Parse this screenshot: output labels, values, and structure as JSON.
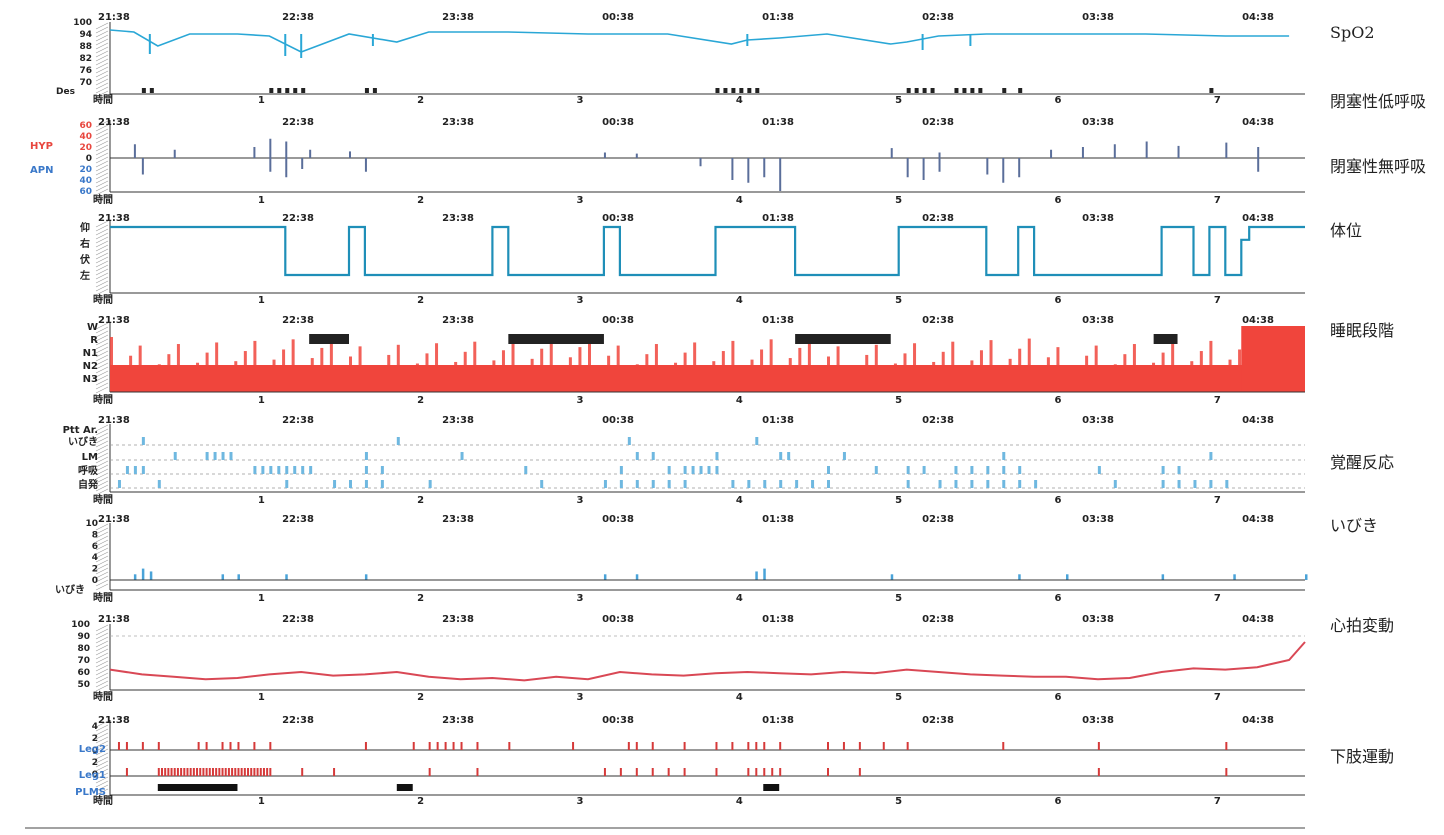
{
  "time_labels": [
    "21:38",
    "22:38",
    "23:38",
    "00:38",
    "01:38",
    "02:38",
    "03:38",
    "04:38"
  ],
  "hour_labels": [
    "時間",
    "1",
    "2",
    "3",
    "4",
    "5",
    "6",
    "7"
  ],
  "right_labels": {
    "spo2": "SpO2",
    "hypopnea": "閉塞性低呼吸",
    "apnea": "閉塞性無呼吸",
    "position": "体位",
    "sleep": "睡眠段階",
    "arousal": "覚醒反応",
    "snore": "いびき",
    "hr": "心拍変動",
    "leg": "下肢運動"
  },
  "colors": {
    "spo2": "#2aa7d6",
    "hyp": "#e8473f",
    "apn": "#3a78c9",
    "bars": "#5a6e9a",
    "position": "#1f8fb8",
    "sleep": "#f0453c",
    "rem": "#222222",
    "arousal": "#6fb8e0",
    "snore": "#4aa3d8",
    "hr": "#d94855",
    "leg": "#d63a3a",
    "plms": "#111111",
    "axis": "#333333"
  },
  "chart_data": [
    {
      "type": "line",
      "panel": "spo2",
      "y_ticks": [
        100,
        94,
        88,
        82,
        76,
        70
      ],
      "ylim": [
        70,
        100
      ],
      "extra_row_label": "Des",
      "x_hours": [
        0,
        0.15,
        0.3,
        0.5,
        0.8,
        1.0,
        1.2,
        1.5,
        1.8,
        2.0,
        2.5,
        3.0,
        3.5,
        3.9,
        4.0,
        4.2,
        4.5,
        4.9,
        5.0,
        5.2,
        5.5,
        6.0,
        6.5,
        7.0,
        7.4
      ],
      "values": [
        96,
        95,
        88,
        94,
        94,
        93,
        85,
        94,
        90,
        95,
        95,
        94,
        94,
        89,
        91,
        92,
        94,
        89,
        90,
        93,
        94,
        94,
        94,
        93,
        93
      ],
      "desat_hours": [
        0.2,
        0.25,
        1.0,
        1.05,
        1.1,
        1.15,
        1.2,
        1.6,
        1.65,
        3.8,
        3.85,
        3.9,
        3.95,
        4.0,
        4.05,
        5.0,
        5.05,
        5.1,
        5.15,
        5.3,
        5.35,
        5.4,
        5.45,
        5.6,
        5.7,
        6.9
      ]
    },
    {
      "type": "bar",
      "panel": "apnea_hypopnea",
      "y_ticks_top": [
        "60",
        "40",
        "20"
      ],
      "y_ticks_bottom": [
        "20",
        "40",
        "60"
      ],
      "label_top": "HYP",
      "label_bottom": "APN",
      "zero_label": "0",
      "hyp_bars": [
        [
          0.15,
          25
        ],
        [
          0.4,
          15
        ],
        [
          0.9,
          20
        ],
        [
          1.0,
          35
        ],
        [
          1.1,
          30
        ],
        [
          1.25,
          15
        ],
        [
          1.5,
          12
        ],
        [
          3.1,
          10
        ],
        [
          3.3,
          8
        ],
        [
          5.9,
          15
        ],
        [
          6.1,
          20
        ],
        [
          6.3,
          25
        ],
        [
          6.5,
          30
        ],
        [
          6.7,
          22
        ],
        [
          7.0,
          28
        ],
        [
          7.2,
          20
        ],
        [
          4.9,
          18
        ],
        [
          5.2,
          10
        ]
      ],
      "apn_bars": [
        [
          0.2,
          30
        ],
        [
          1.0,
          25
        ],
        [
          1.1,
          35
        ],
        [
          1.2,
          20
        ],
        [
          1.6,
          25
        ],
        [
          3.7,
          15
        ],
        [
          3.9,
          40
        ],
        [
          4.0,
          45
        ],
        [
          4.1,
          35
        ],
        [
          4.2,
          60
        ],
        [
          5.0,
          35
        ],
        [
          5.1,
          40
        ],
        [
          5.2,
          25
        ],
        [
          5.5,
          30
        ],
        [
          5.6,
          45
        ],
        [
          5.7,
          35
        ],
        [
          7.2,
          25
        ]
      ]
    },
    {
      "type": "line",
      "panel": "position",
      "y_ticks": [
        "仰",
        "右",
        "伏",
        "左"
      ],
      "segments": [
        [
          0,
          0
        ],
        [
          1.1,
          0
        ],
        [
          1.1,
          3
        ],
        [
          1.5,
          3
        ],
        [
          1.5,
          0
        ],
        [
          1.6,
          0
        ],
        [
          1.6,
          3
        ],
        [
          2.4,
          3
        ],
        [
          2.4,
          0
        ],
        [
          2.5,
          0
        ],
        [
          2.5,
          3
        ],
        [
          3.1,
          3
        ],
        [
          3.1,
          0
        ],
        [
          3.2,
          0
        ],
        [
          3.2,
          3
        ],
        [
          3.8,
          3
        ],
        [
          3.8,
          0
        ],
        [
          4.3,
          0
        ],
        [
          4.3,
          3
        ],
        [
          4.95,
          3
        ],
        [
          4.95,
          0
        ],
        [
          5.5,
          0
        ],
        [
          5.5,
          3
        ],
        [
          5.7,
          3
        ],
        [
          5.7,
          0
        ],
        [
          5.8,
          0
        ],
        [
          5.8,
          3
        ],
        [
          6.6,
          3
        ],
        [
          6.6,
          0
        ],
        [
          6.8,
          0
        ],
        [
          6.8,
          3
        ],
        [
          6.9,
          3
        ],
        [
          6.9,
          0
        ],
        [
          7.0,
          0
        ],
        [
          7.0,
          3
        ],
        [
          7.1,
          3
        ],
        [
          7.1,
          0.8
        ],
        [
          7.15,
          0.8
        ],
        [
          7.15,
          0
        ],
        [
          7.5,
          0
        ]
      ]
    },
    {
      "type": "area",
      "panel": "sleep",
      "y_ticks": [
        "W",
        "R",
        "N1",
        "N2",
        "N3"
      ],
      "rem_blocks": [
        [
          1.25,
          1.5
        ],
        [
          2.5,
          3.1
        ],
        [
          4.3,
          4.9
        ],
        [
          6.55,
          6.7
        ]
      ],
      "wake_block": [
        7.1,
        7.5
      ]
    },
    {
      "type": "table",
      "panel": "arousal",
      "rows": [
        "Ptt Ar.",
        "いびき",
        "LM",
        "呼吸",
        "自発"
      ],
      "events": {
        "snore": [
          0.2,
          1.8,
          3.25,
          4.05
        ],
        "lm": [
          0.4,
          0.6,
          0.65,
          0.7,
          0.75,
          1.6,
          2.2,
          3.3,
          3.4,
          3.8,
          4.2,
          4.25,
          4.6,
          5.6,
          6.9
        ],
        "resp": [
          0.1,
          0.15,
          0.2,
          0.9,
          0.95,
          1.0,
          1.05,
          1.1,
          1.15,
          1.2,
          1.25,
          1.6,
          1.7,
          2.6,
          3.2,
          3.5,
          3.6,
          3.65,
          3.7,
          3.75,
          3.8,
          4.5,
          4.8,
          5.0,
          5.1,
          5.3,
          5.4,
          5.5,
          5.6,
          5.7,
          6.2,
          6.6,
          6.7
        ],
        "spont": [
          0.05,
          0.3,
          1.1,
          1.4,
          1.5,
          1.6,
          1.7,
          2.0,
          2.7,
          3.1,
          3.2,
          3.3,
          3.4,
          3.5,
          3.6,
          3.9,
          4.0,
          4.1,
          4.2,
          4.3,
          4.4,
          4.5,
          5.0,
          5.2,
          5.3,
          5.4,
          5.5,
          5.6,
          5.7,
          5.8,
          6.3,
          6.6,
          6.7,
          6.8,
          6.9,
          7.0
        ]
      }
    },
    {
      "type": "bar",
      "panel": "snore",
      "y_ticks": [
        10,
        8,
        6,
        4,
        2,
        0
      ],
      "bottom_label": "いびき",
      "bars": [
        [
          0.15,
          1
        ],
        [
          0.2,
          2
        ],
        [
          0.25,
          1.5
        ],
        [
          0.7,
          1
        ],
        [
          0.8,
          1
        ],
        [
          1.1,
          1
        ],
        [
          1.6,
          1
        ],
        [
          3.1,
          1
        ],
        [
          3.3,
          1
        ],
        [
          4.05,
          1.5
        ],
        [
          4.1,
          2
        ],
        [
          4.9,
          1
        ],
        [
          5.7,
          1
        ],
        [
          6.0,
          1
        ],
        [
          6.6,
          1
        ],
        [
          7.05,
          1
        ],
        [
          7.5,
          1
        ]
      ]
    },
    {
      "type": "line",
      "panel": "hr",
      "y_ticks": [
        100,
        90,
        80,
        70,
        60,
        50
      ],
      "ylim": [
        45,
        100
      ],
      "x_hours": [
        0,
        0.2,
        0.4,
        0.6,
        0.8,
        1.0,
        1.2,
        1.4,
        1.6,
        1.8,
        2.0,
        2.2,
        2.4,
        2.6,
        2.8,
        3.0,
        3.2,
        3.4,
        3.6,
        3.8,
        4.0,
        4.2,
        4.4,
        4.6,
        4.8,
        5.0,
        5.2,
        5.4,
        5.6,
        5.8,
        6.0,
        6.2,
        6.4,
        6.6,
        6.8,
        7.0,
        7.2,
        7.4,
        7.5
      ],
      "values": [
        62,
        58,
        56,
        54,
        55,
        58,
        60,
        57,
        58,
        60,
        56,
        54,
        55,
        53,
        56,
        54,
        60,
        58,
        57,
        59,
        60,
        59,
        58,
        60,
        59,
        62,
        60,
        58,
        57,
        56,
        56,
        54,
        55,
        60,
        63,
        62,
        64,
        70,
        85
      ]
    },
    {
      "type": "bar",
      "panel": "leg",
      "leg2_label": "Leg2",
      "leg1_label": "Leg1",
      "plms_label": "PLMS",
      "y_ticks_leg2": [
        4,
        2,
        0
      ],
      "y_ticks_leg1": [
        2,
        0
      ],
      "leg2": [
        0.05,
        0.1,
        0.2,
        0.3,
        0.55,
        0.6,
        0.7,
        0.75,
        0.8,
        0.9,
        1.0,
        1.6,
        1.9,
        2.0,
        2.05,
        2.1,
        2.15,
        2.2,
        2.3,
        2.5,
        2.9,
        3.25,
        3.3,
        3.4,
        3.6,
        3.8,
        3.9,
        4.0,
        4.05,
        4.1,
        4.2,
        4.5,
        4.6,
        4.7,
        4.85,
        5.0,
        5.6,
        6.2,
        7.0
      ],
      "leg1": [
        0.1,
        0.3,
        0.32,
        0.34,
        0.36,
        0.38,
        0.4,
        0.42,
        0.44,
        0.46,
        0.48,
        0.5,
        0.52,
        0.54,
        0.56,
        0.58,
        0.6,
        0.62,
        0.64,
        0.66,
        0.68,
        0.7,
        0.72,
        0.74,
        0.76,
        0.78,
        0.8,
        0.82,
        0.84,
        0.86,
        0.88,
        0.9,
        0.92,
        0.94,
        0.96,
        0.98,
        1.0,
        1.2,
        1.4,
        2.0,
        2.3,
        3.1,
        3.2,
        3.3,
        3.4,
        3.5,
        3.6,
        3.8,
        4.0,
        4.05,
        4.1,
        4.15,
        4.2,
        4.5,
        4.7,
        6.2,
        7.0
      ],
      "plms_blocks": [
        [
          0.3,
          0.8
        ],
        [
          1.8,
          1.9
        ],
        [
          4.1,
          4.2
        ]
      ]
    }
  ]
}
